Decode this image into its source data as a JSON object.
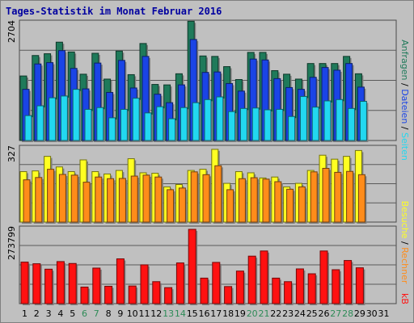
{
  "title": "Tages-Statistik im Monat Februar 2016",
  "colors": {
    "background": "#c0c0c0",
    "title": "#0000a0",
    "weekday_label": "#000000",
    "weekend_label": "#2e8b57",
    "anfragen": "#1f7a5a",
    "dateien": "#1a44e6",
    "seiten": "#22d8f0",
    "besuche": "#ffff22",
    "rechner": "#ff8c1a",
    "kb": "#ff1111"
  },
  "chart_data": [
    {
      "type": "bar",
      "panel": "top",
      "y_max_label": "2704",
      "ylim": [
        0,
        2704
      ],
      "categories": [
        "1",
        "2",
        "3",
        "4",
        "5",
        "6",
        "7",
        "8",
        "9",
        "10",
        "11",
        "12",
        "13",
        "14",
        "15",
        "16",
        "17",
        "18",
        "19",
        "20",
        "21",
        "22",
        "23",
        "24",
        "25",
        "26",
        "27",
        "28",
        "29",
        "30",
        "31"
      ],
      "series": [
        {
          "name": "Anfragen",
          "values": [
            1450,
            1910,
            1950,
            2210,
            1990,
            1490,
            1960,
            1380,
            2010,
            1480,
            2180,
            1260,
            1250,
            1500,
            2680,
            1900,
            1890,
            1660,
            1370,
            1980,
            1980,
            1570,
            1490,
            1380,
            1730,
            1730,
            1730,
            1890,
            1500,
            null,
            null
          ]
        },
        {
          "name": "Dateien",
          "values": [
            1150,
            1720,
            1750,
            2020,
            1620,
            1160,
            1740,
            1080,
            1800,
            1180,
            1890,
            1040,
            850,
            1250,
            2270,
            1530,
            1540,
            1280,
            1110,
            1830,
            1810,
            1390,
            1190,
            1150,
            1420,
            1640,
            1580,
            1730,
            1200,
            null,
            null
          ]
        },
        {
          "name": "Seiten",
          "values": [
            560,
            780,
            960,
            1000,
            1150,
            700,
            740,
            510,
            700,
            950,
            620,
            760,
            490,
            740,
            850,
            920,
            980,
            650,
            720,
            730,
            690,
            700,
            540,
            990,
            750,
            890,
            920,
            720,
            880,
            null,
            null
          ]
        }
      ]
    },
    {
      "type": "bar",
      "panel": "middle",
      "y_max_label": "327",
      "ylim": [
        0,
        327
      ],
      "categories": [
        "1",
        "2",
        "3",
        "4",
        "5",
        "6",
        "7",
        "8",
        "9",
        "10",
        "11",
        "12",
        "13",
        "14",
        "15",
        "16",
        "17",
        "18",
        "19",
        "20",
        "21",
        "22",
        "23",
        "24",
        "25",
        "26",
        "27",
        "28",
        "29",
        "30",
        "31"
      ],
      "series": [
        {
          "name": "Besuche",
          "values": [
            215,
            218,
            280,
            235,
            215,
            265,
            215,
            205,
            220,
            270,
            210,
            208,
            150,
            160,
            220,
            225,
            310,
            165,
            215,
            210,
            188,
            192,
            150,
            165,
            220,
            285,
            268,
            280,
            305,
            null,
            null
          ]
        },
        {
          "name": "Rechner",
          "values": [
            180,
            190,
            225,
            203,
            200,
            170,
            192,
            185,
            186,
            196,
            200,
            192,
            138,
            145,
            214,
            202,
            240,
            138,
            185,
            189,
            183,
            172,
            140,
            150,
            214,
            229,
            212,
            216,
            202,
            null,
            null
          ]
        }
      ]
    },
    {
      "type": "bar",
      "panel": "bottom",
      "y_max_label": "273799",
      "ylim": [
        0,
        273799
      ],
      "categories": [
        "1",
        "2",
        "3",
        "4",
        "5",
        "6",
        "7",
        "8",
        "9",
        "10",
        "11",
        "12",
        "13",
        "14",
        "15",
        "16",
        "17",
        "18",
        "19",
        "20",
        "21",
        "22",
        "23",
        "24",
        "25",
        "26",
        "27",
        "28",
        "29",
        "30",
        "31"
      ],
      "series": [
        {
          "name": "kB",
          "values": [
            153000,
            147000,
            127000,
            155000,
            148000,
            61000,
            131000,
            64000,
            165000,
            65000,
            143000,
            81000,
            59000,
            150000,
            273799,
            94000,
            152000,
            63000,
            120000,
            175000,
            194000,
            94000,
            81000,
            128000,
            110000,
            194000,
            125000,
            159000,
            132000,
            null,
            null
          ]
        }
      ]
    }
  ],
  "right_axis": {
    "top_parts": [
      {
        "text": "Anfragen",
        "key": "anfragen"
      },
      {
        "text": " / ",
        "key": "sep"
      },
      {
        "text": "Dateien",
        "key": "dateien"
      },
      {
        "text": " / ",
        "key": "sep"
      },
      {
        "text": "Seiten",
        "key": "seiten"
      }
    ],
    "mid_parts": [
      {
        "text": "Besuche",
        "key": "besuche"
      },
      {
        "text": " / ",
        "key": "sep"
      },
      {
        "text": "Rechner",
        "key": "rechner"
      }
    ],
    "bottom_label": "kB"
  },
  "weekend_days": [
    "6",
    "7",
    "13",
    "14",
    "20",
    "21",
    "27",
    "28"
  ]
}
